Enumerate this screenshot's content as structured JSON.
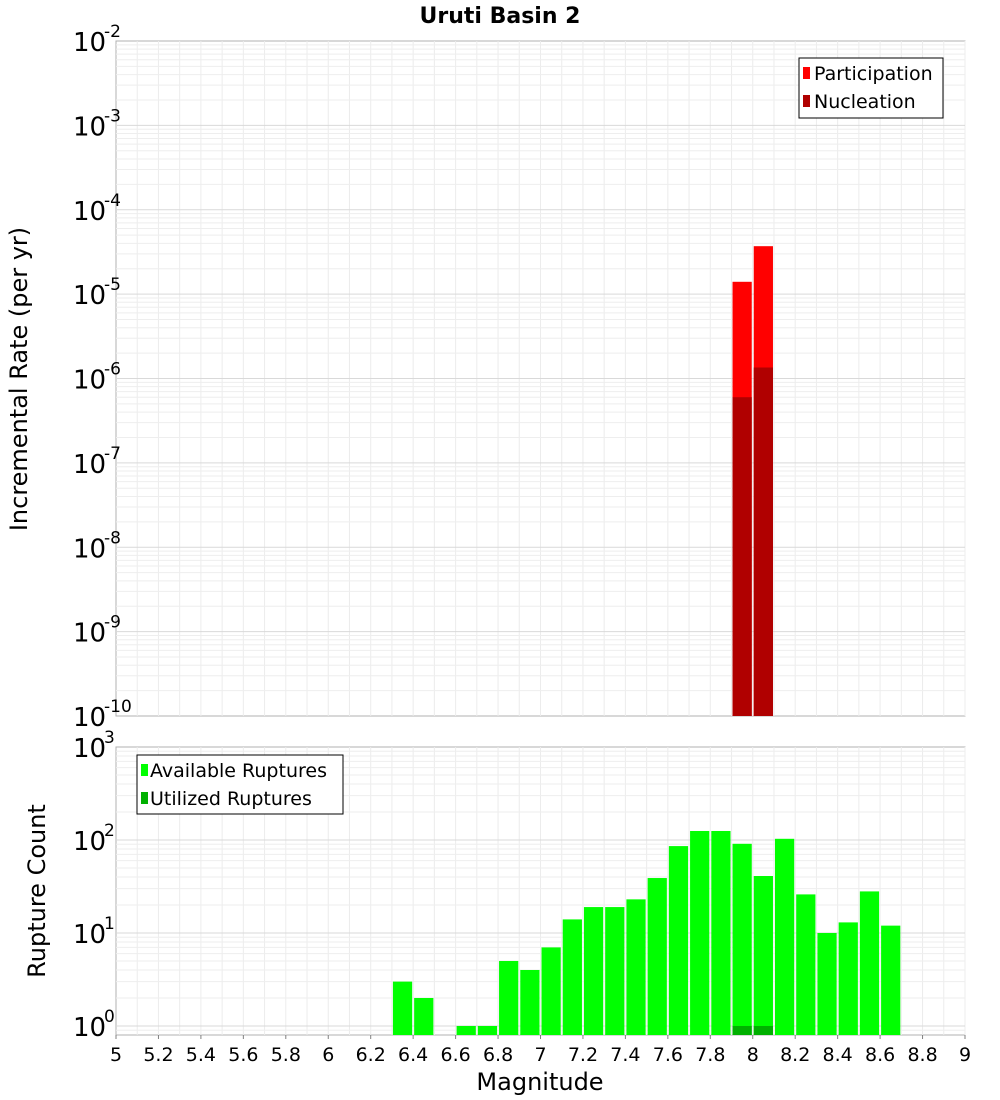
{
  "chart_data": [
    {
      "type": "bar",
      "title": "Uruti Basin 2",
      "xlabel": "",
      "ylabel": "Incremental Rate (per yr)",
      "yscale": "log",
      "ylim": [
        1e-10,
        0.01
      ],
      "xlim": [
        5,
        9
      ],
      "grid": true,
      "legend_position": "top-right",
      "series": [
        {
          "name": "Participation",
          "color": "#ff0000",
          "points": [
            {
              "x": 7.95,
              "y": 1.4e-05
            },
            {
              "x": 8.05,
              "y": 3.7e-05
            }
          ]
        },
        {
          "name": "Nucleation",
          "color": "#b00000",
          "points": [
            {
              "x": 7.95,
              "y": 6e-07
            },
            {
              "x": 8.05,
              "y": 1.35e-06
            }
          ]
        }
      ],
      "yticks": [
        {
          "base": "10",
          "exp": "-2"
        },
        {
          "base": "10",
          "exp": "-3"
        },
        {
          "base": "10",
          "exp": "-4"
        },
        {
          "base": "10",
          "exp": "-5"
        },
        {
          "base": "10",
          "exp": "-6"
        },
        {
          "base": "10",
          "exp": "-7"
        },
        {
          "base": "10",
          "exp": "-8"
        },
        {
          "base": "10",
          "exp": "-9"
        },
        {
          "base": "10",
          "exp": "-10"
        }
      ]
    },
    {
      "type": "bar",
      "title": "",
      "xlabel": "Magnitude",
      "ylabel": "Rupture Count",
      "yscale": "log",
      "ylim": [
        0.8,
        1000
      ],
      "xlim": [
        5,
        9
      ],
      "grid": true,
      "legend_position": "top-left",
      "series": [
        {
          "name": "Available Ruptures",
          "color": "#00ff00",
          "points": [
            {
              "x": 6.35,
              "y": 3
            },
            {
              "x": 6.45,
              "y": 2
            },
            {
              "x": 6.65,
              "y": 1
            },
            {
              "x": 6.75,
              "y": 1
            },
            {
              "x": 6.85,
              "y": 5
            },
            {
              "x": 6.95,
              "y": 4
            },
            {
              "x": 7.05,
              "y": 7
            },
            {
              "x": 7.15,
              "y": 14
            },
            {
              "x": 7.25,
              "y": 19
            },
            {
              "x": 7.35,
              "y": 19
            },
            {
              "x": 7.45,
              "y": 23
            },
            {
              "x": 7.55,
              "y": 39
            },
            {
              "x": 7.65,
              "y": 86
            },
            {
              "x": 7.75,
              "y": 125
            },
            {
              "x": 7.85,
              "y": 125
            },
            {
              "x": 7.95,
              "y": 91
            },
            {
              "x": 8.05,
              "y": 41
            },
            {
              "x": 8.15,
              "y": 103
            },
            {
              "x": 8.25,
              "y": 26
            },
            {
              "x": 8.35,
              "y": 10
            },
            {
              "x": 8.45,
              "y": 13
            },
            {
              "x": 8.55,
              "y": 28
            },
            {
              "x": 8.65,
              "y": 12
            }
          ]
        },
        {
          "name": "Utilized Ruptures",
          "color": "#00b000",
          "points": [
            {
              "x": 7.95,
              "y": 1
            },
            {
              "x": 8.05,
              "y": 1
            }
          ]
        }
      ],
      "yticks": [
        {
          "base": "10",
          "exp": "3"
        },
        {
          "base": "10",
          "exp": "2"
        },
        {
          "base": "10",
          "exp": "1"
        },
        {
          "base": "10",
          "exp": "0"
        }
      ],
      "xticks": [
        "5",
        "5.2",
        "5.4",
        "5.6",
        "5.8",
        "6",
        "6.2",
        "6.4",
        "6.6",
        "6.8",
        "7",
        "7.2",
        "7.4",
        "7.6",
        "7.8",
        "8",
        "8.2",
        "8.4",
        "8.6",
        "8.8",
        "9"
      ]
    }
  ]
}
